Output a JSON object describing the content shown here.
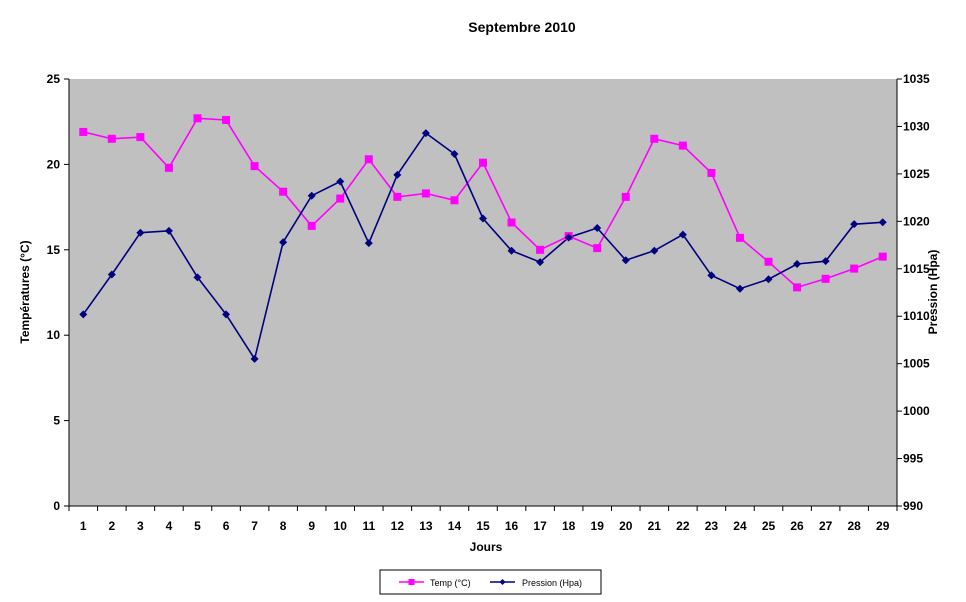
{
  "chart_data": {
    "type": "line",
    "title": "Septembre 2010",
    "xlabel": "Jours",
    "ylabel": "Températures (°C)",
    "y2label": "Pression (Hpa)",
    "x": [
      1,
      2,
      3,
      4,
      5,
      6,
      7,
      8,
      9,
      10,
      11,
      12,
      13,
      14,
      15,
      16,
      17,
      18,
      19,
      20,
      21,
      22,
      23,
      24,
      25,
      26,
      27,
      28,
      29
    ],
    "x_tick_labels": [
      "1",
      "2",
      "3",
      "4",
      "5",
      "6",
      "7",
      "8",
      "9",
      "10",
      "11",
      "12",
      "13",
      "14",
      "15",
      "16",
      "17",
      "18",
      "19",
      "20",
      "21",
      "22",
      "23",
      "24",
      "25",
      "26",
      "27",
      "28",
      "29"
    ],
    "ylim": [
      0,
      25
    ],
    "y_ticks": [
      0,
      5,
      10,
      15,
      20,
      25
    ],
    "y2lim": [
      990,
      1035
    ],
    "y2_ticks": [
      990,
      995,
      1000,
      1005,
      1010,
      1015,
      1020,
      1025,
      1030,
      1035
    ],
    "y2_tick_labels": [
      "990",
      "995",
      "1000",
      "1005",
      "1010",
      "1015",
      "1020",
      "1025",
      "1030",
      "1035"
    ],
    "grid": false,
    "plot_background": "#c0c0c0",
    "legend_position": "bottom",
    "series": [
      {
        "name": "Temp (°C)",
        "axis": "left",
        "color": "#ff00ff",
        "marker": "square",
        "values": [
          21.9,
          21.5,
          21.6,
          19.8,
          22.7,
          22.6,
          19.9,
          18.4,
          16.4,
          18.0,
          20.3,
          18.1,
          18.3,
          17.9,
          20.1,
          16.6,
          15.0,
          15.8,
          15.1,
          18.1,
          21.5,
          21.1,
          19.5,
          15.7,
          14.3,
          12.8,
          13.3,
          13.9,
          14.6
        ]
      },
      {
        "name": "Pression (Hpa)",
        "axis": "right",
        "color": "#000080",
        "marker": "diamond",
        "values": [
          1010.2,
          1014.4,
          1018.8,
          1019.0,
          1014.1,
          1010.2,
          1005.5,
          1017.8,
          1022.7,
          1024.2,
          1017.7,
          1024.9,
          1029.3,
          1027.1,
          1020.3,
          1016.9,
          1015.7,
          1018.3,
          1019.3,
          1015.9,
          1016.9,
          1018.6,
          1014.3,
          1012.9,
          1013.9,
          1015.5,
          1015.8,
          1019.7,
          1019.9
        ]
      }
    ]
  }
}
